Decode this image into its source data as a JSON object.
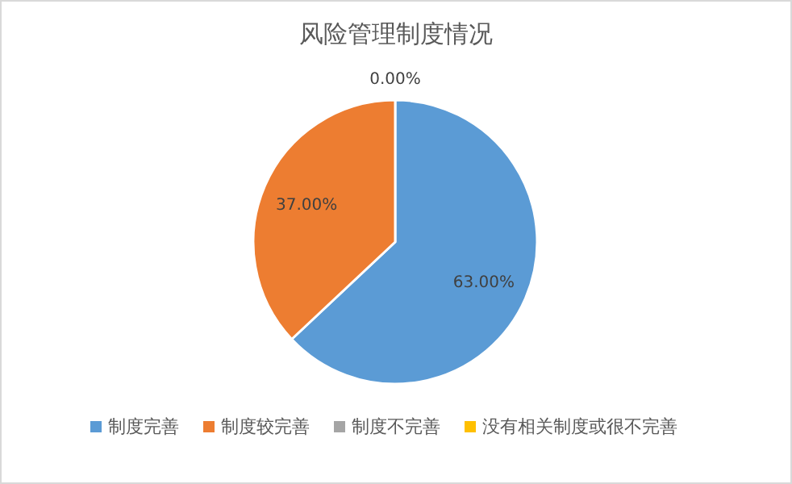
{
  "chart_data": {
    "type": "pie",
    "title": "风险管理制度情况",
    "categories": [
      "制度完善",
      "制度较完善",
      "制度不完善",
      "没有相关制度或很不完善"
    ],
    "values": [
      63,
      37,
      0,
      0
    ],
    "colors": [
      "#5b9bd5",
      "#ed7d31",
      "#a5a5a5",
      "#ffc000"
    ],
    "value_labels": [
      "63.00%",
      "37.00%",
      "0.00%",
      null
    ],
    "legend": "bottom"
  }
}
